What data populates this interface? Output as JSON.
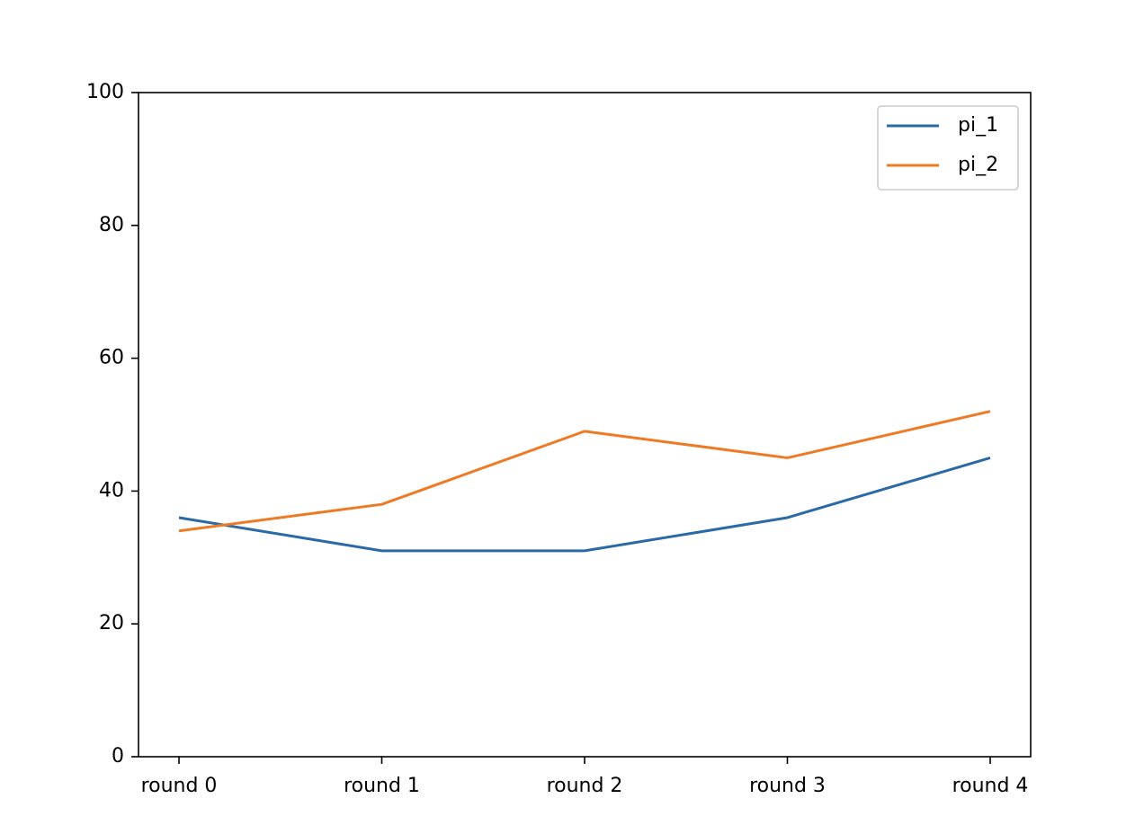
{
  "chart_data": {
    "type": "line",
    "title": "",
    "xlabel": "",
    "ylabel": "",
    "categories": [
      "round 0",
      "round 1",
      "round 2",
      "round 3",
      "round 4"
    ],
    "series": [
      {
        "name": "pi_1",
        "color": "#2b6aa6",
        "values": [
          36,
          31,
          31,
          36,
          45
        ]
      },
      {
        "name": "pi_2",
        "color": "#ee7a24",
        "values": [
          34,
          38,
          49,
          45,
          52
        ]
      }
    ],
    "ylim": [
      0,
      100
    ],
    "yticks": [
      "0",
      "20",
      "40",
      "60",
      "80",
      "100"
    ],
    "grid": false,
    "legend_position": "top-right"
  }
}
